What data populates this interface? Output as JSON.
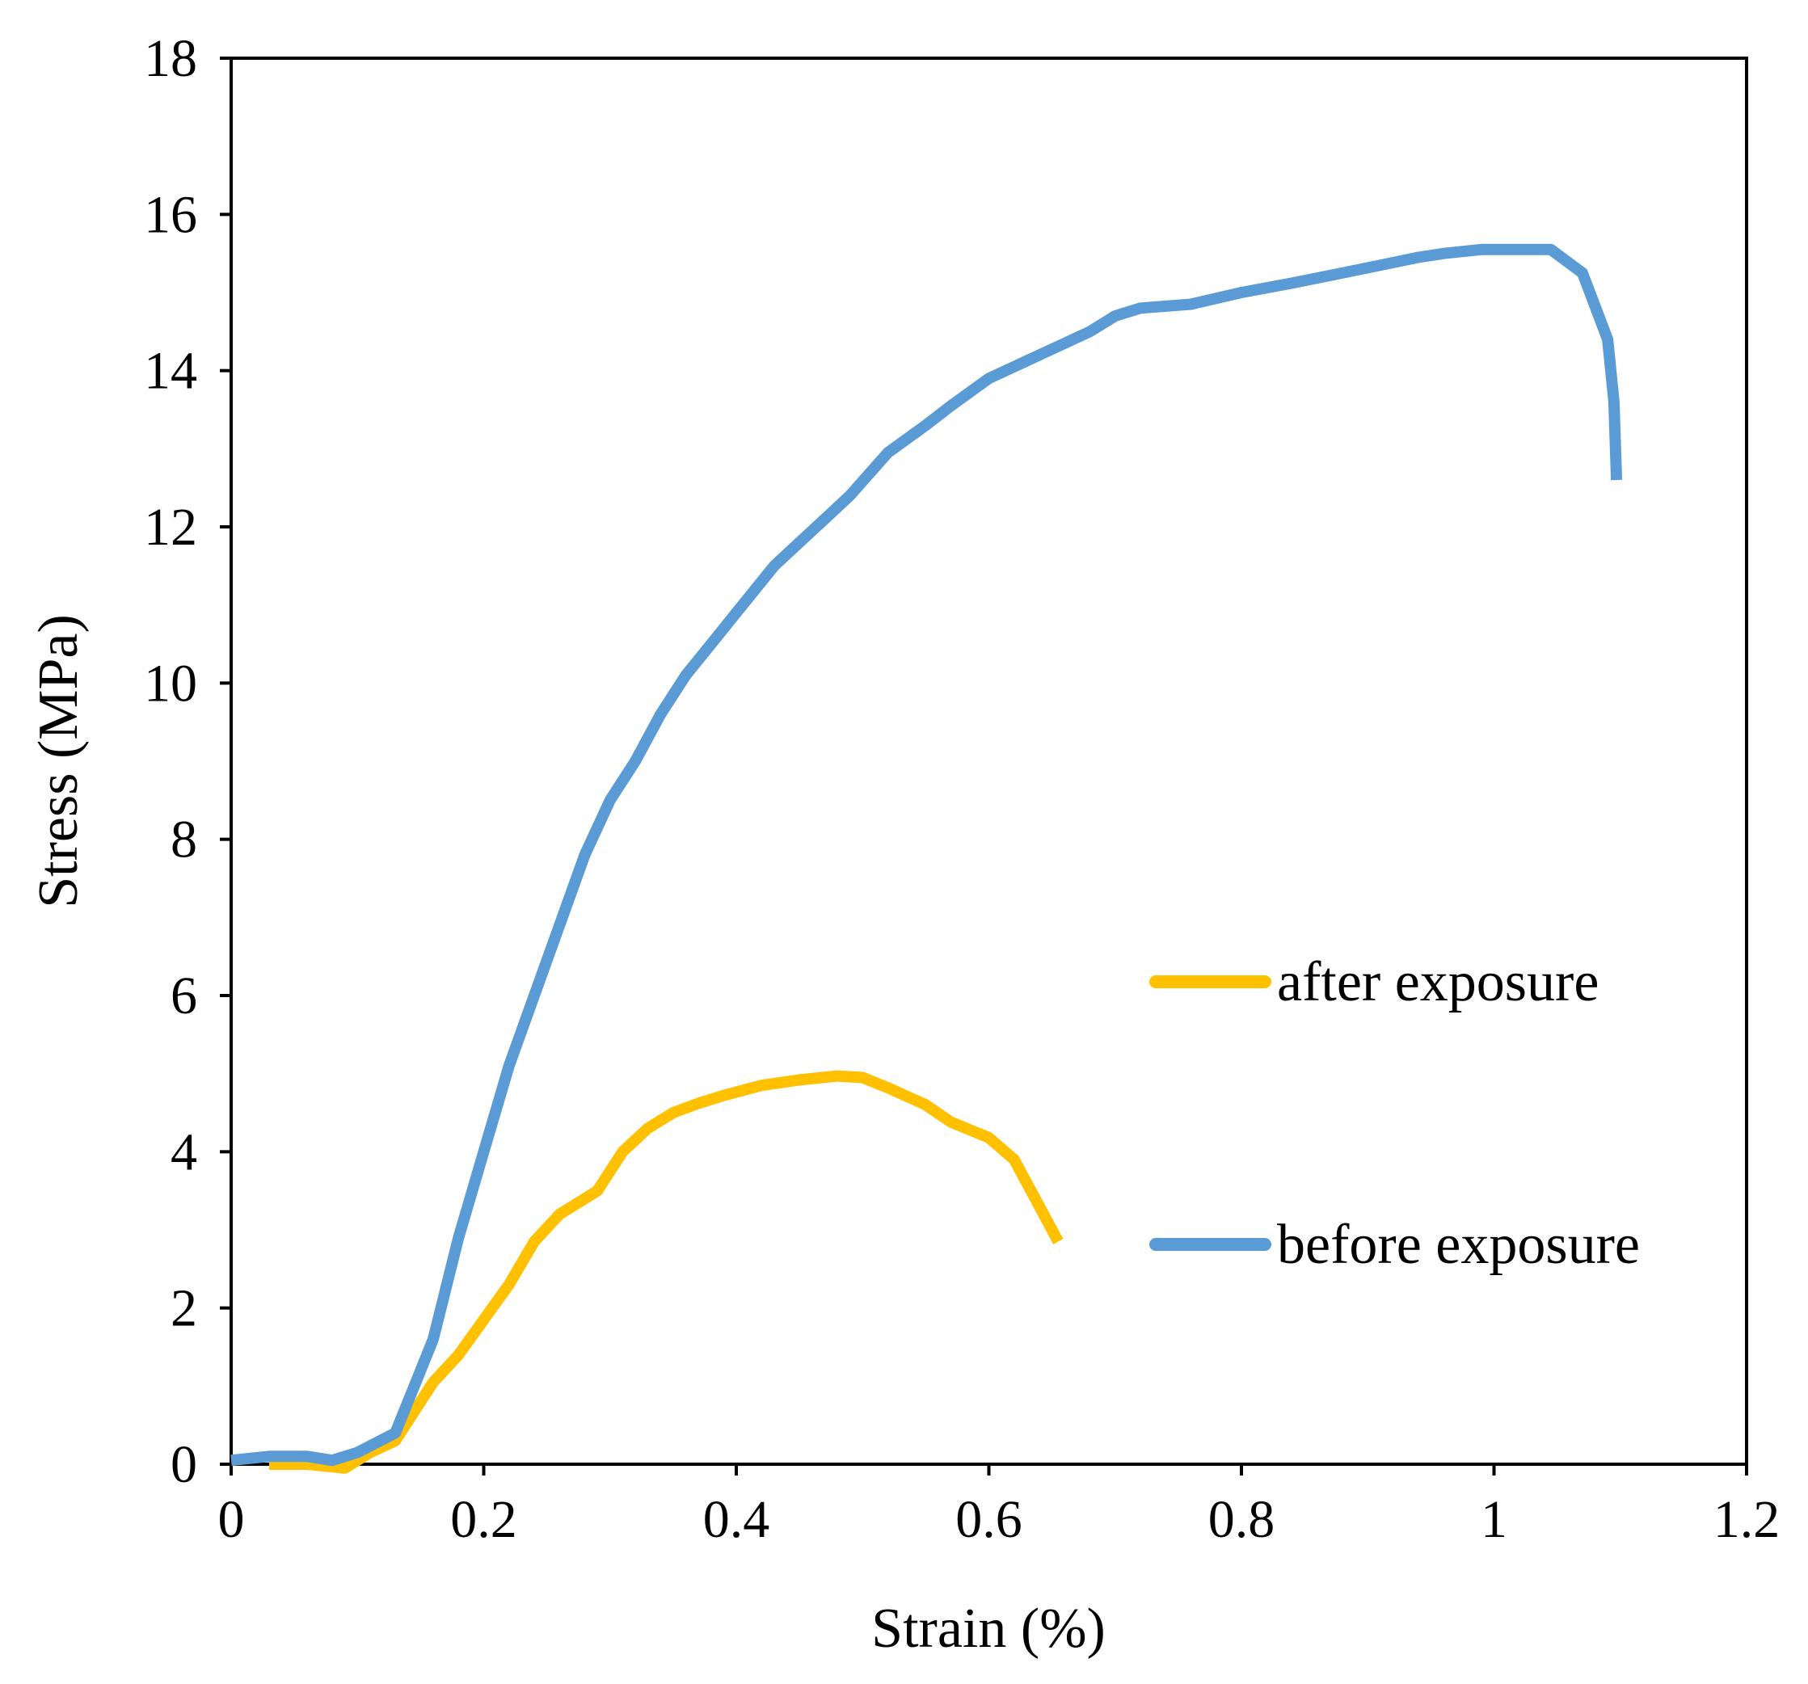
{
  "chart_data": {
    "type": "line",
    "title": "",
    "xlabel": "Strain (%)",
    "ylabel": "Stress (MPa)",
    "xlim": [
      0,
      1.2
    ],
    "ylim": [
      0,
      18
    ],
    "xticks": [
      0,
      0.2,
      0.4,
      0.6,
      0.8,
      1,
      1.2
    ],
    "xtick_labels": [
      "0",
      "0.2",
      "0.4",
      "0.6",
      "0.8",
      "1",
      "1.2"
    ],
    "yticks": [
      0,
      2,
      4,
      6,
      8,
      10,
      12,
      14,
      16,
      18
    ],
    "ytick_labels": [
      "0",
      "2",
      "4",
      "6",
      "8",
      "10",
      "12",
      "14",
      "16",
      "18"
    ],
    "grid": false,
    "legend_position": "center-right",
    "series": [
      {
        "name": "after exposure",
        "color": "#FFC000",
        "x": [
          0.03,
          0.06,
          0.09,
          0.11,
          0.13,
          0.16,
          0.18,
          0.2,
          0.22,
          0.24,
          0.26,
          0.29,
          0.31,
          0.33,
          0.35,
          0.37,
          0.39,
          0.42,
          0.45,
          0.48,
          0.5,
          0.52,
          0.55,
          0.57,
          0.6,
          0.62,
          0.63,
          0.655
        ],
        "values": [
          0.0,
          0.0,
          -0.05,
          0.15,
          0.3,
          1.05,
          1.4,
          1.85,
          2.3,
          2.85,
          3.2,
          3.5,
          4.0,
          4.3,
          4.5,
          4.62,
          4.72,
          4.85,
          4.92,
          4.97,
          4.95,
          4.82,
          4.6,
          4.38,
          4.18,
          3.9,
          3.6,
          2.85
        ]
      },
      {
        "name": "before exposure",
        "color": "#5B9BD5",
        "x": [
          0.0,
          0.03,
          0.06,
          0.08,
          0.1,
          0.13,
          0.15,
          0.16,
          0.18,
          0.2,
          0.22,
          0.24,
          0.26,
          0.28,
          0.3,
          0.32,
          0.34,
          0.36,
          0.38,
          0.4,
          0.43,
          0.46,
          0.49,
          0.52,
          0.55,
          0.57,
          0.6,
          0.62,
          0.64,
          0.66,
          0.68,
          0.7,
          0.72,
          0.76,
          0.8,
          0.84,
          0.88,
          0.91,
          0.94,
          0.96,
          0.99,
          1.02,
          1.045,
          1.07,
          1.09,
          1.095,
          1.097
        ],
        "values": [
          0.05,
          0.1,
          0.1,
          0.05,
          0.15,
          0.4,
          1.2,
          1.6,
          2.9,
          4.0,
          5.1,
          6.0,
          6.9,
          7.8,
          8.5,
          9.0,
          9.6,
          10.1,
          10.5,
          10.9,
          11.5,
          11.95,
          12.4,
          12.95,
          13.3,
          13.55,
          13.9,
          14.05,
          14.2,
          14.35,
          14.5,
          14.7,
          14.8,
          14.85,
          15.0,
          15.12,
          15.25,
          15.35,
          15.45,
          15.5,
          15.55,
          15.55,
          15.55,
          15.25,
          14.4,
          13.6,
          12.6
        ]
      }
    ]
  }
}
